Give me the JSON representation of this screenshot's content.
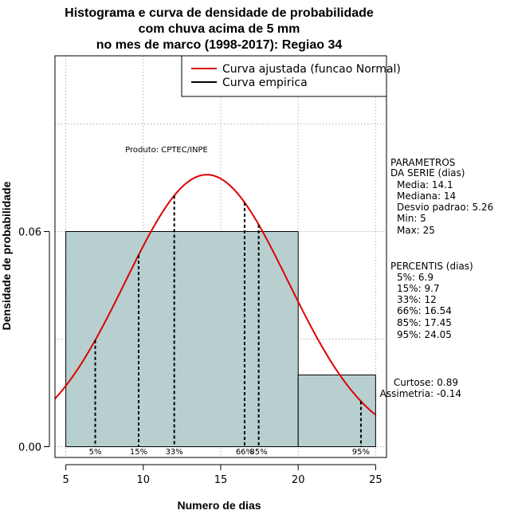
{
  "chart_data": {
    "type": "histogram",
    "title": [
      "Histograma e curva de densidade de probabilidade",
      "com chuva acima de 5 mm",
      "no mes de marco (1998-2017): Regiao 34"
    ],
    "xlabel": "Numero de dias",
    "ylabel": "Densidade de probabilidade",
    "xlim": [
      4.3,
      25.7
    ],
    "ylim": [
      -0.003,
      0.109
    ],
    "x_ticks": [
      5,
      10,
      15,
      20,
      25
    ],
    "x_tick_labels": [
      "5",
      "10",
      "15",
      "20",
      "25"
    ],
    "y_ticks": [
      0.0,
      0.06
    ],
    "y_tick_labels": [
      "0.00",
      "0.06"
    ],
    "grid": true,
    "bins": [
      {
        "start": 5,
        "end": 20,
        "density": 0.06
      },
      {
        "start": 20,
        "end": 25,
        "density": 0.02
      }
    ],
    "normal_curve": {
      "mean": 14.1,
      "sd": 5.26,
      "color": "#dd0000"
    },
    "percentile_lines": [
      {
        "label": "5%",
        "x": 6.9
      },
      {
        "label": "15%",
        "x": 9.7
      },
      {
        "label": "33%",
        "x": 12
      },
      {
        "label": "66%",
        "x": 16.54
      },
      {
        "label": "85%",
        "x": 17.45
      },
      {
        "label": "95%",
        "x": 24.05
      }
    ],
    "legend": [
      {
        "label": "Curva ajustada (funcao Normal)",
        "color": "#dd0000"
      },
      {
        "label": "Curva empirica",
        "color": "#000000"
      }
    ],
    "legend_position": "top-right",
    "bar_color": "#b7cfcf",
    "annotation": "Produto: CPTEC/INPE"
  },
  "side_panel": {
    "parametros": [
      "PARAMETROS",
      "DA SERIE (dias)",
      "Media: 14.1",
      "Mediana: 14",
      "Desvio padrao: 5.26",
      "Min: 5",
      "Max: 25"
    ],
    "percentis": [
      "PERCENTIS (dias)",
      "5%: 6.9",
      "15%: 9.7",
      "33%: 12",
      "66%: 16.54",
      "85%: 17.45",
      "95%: 24.05"
    ],
    "stats": [
      "Curtose: 0.89",
      "Assimetria: -0.14"
    ]
  }
}
